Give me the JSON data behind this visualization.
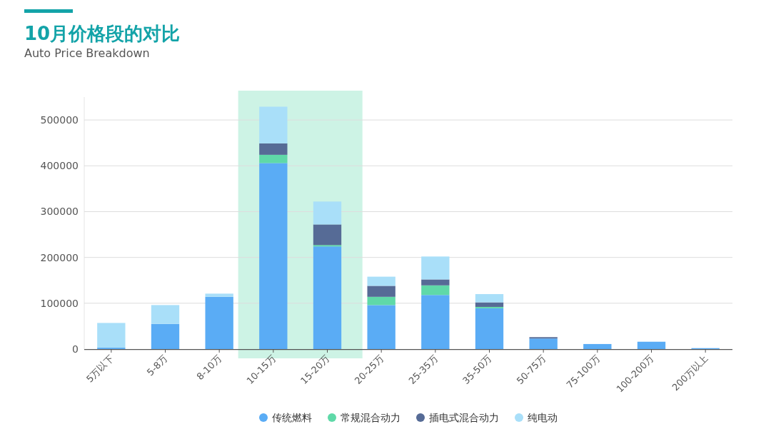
{
  "chart_data": {
    "type": "bar",
    "title": "10月价格段的对比",
    "subtitle": "Auto Price Breakdown",
    "stacked": true,
    "categories": [
      "5万以下",
      "5-8万",
      "8-10万",
      "10-15万",
      "15-20万",
      "20-25万",
      "25-35万",
      "35-50万",
      "50-75万",
      "75-100万",
      "100-200万",
      "200万以上"
    ],
    "series": [
      {
        "name": "传统燃料",
        "color": "#5aacf5",
        "values": [
          3000,
          55000,
          114000,
          406000,
          224000,
          96000,
          118000,
          89000,
          23000,
          11000,
          16000,
          2000
        ]
      },
      {
        "name": "常规混合动力",
        "color": "#5fd9a8",
        "values": [
          0,
          0,
          0,
          18000,
          3000,
          18000,
          21000,
          3000,
          0,
          0,
          0,
          0
        ]
      },
      {
        "name": "插电式混合动力",
        "color": "#566b96",
        "values": [
          0,
          0,
          0,
          25000,
          45000,
          24000,
          13000,
          10000,
          3000,
          0,
          0,
          0
        ]
      },
      {
        "name": "纯电动",
        "color": "#a9dff9",
        "values": [
          54000,
          41000,
          7000,
          80000,
          50000,
          20000,
          50000,
          18000,
          0,
          0,
          0,
          0
        ]
      }
    ],
    "ylim": [
      0,
      550000
    ],
    "yticks": [
      0,
      100000,
      200000,
      300000,
      400000,
      500000
    ],
    "grid": "y",
    "legend": "bottom"
  }
}
